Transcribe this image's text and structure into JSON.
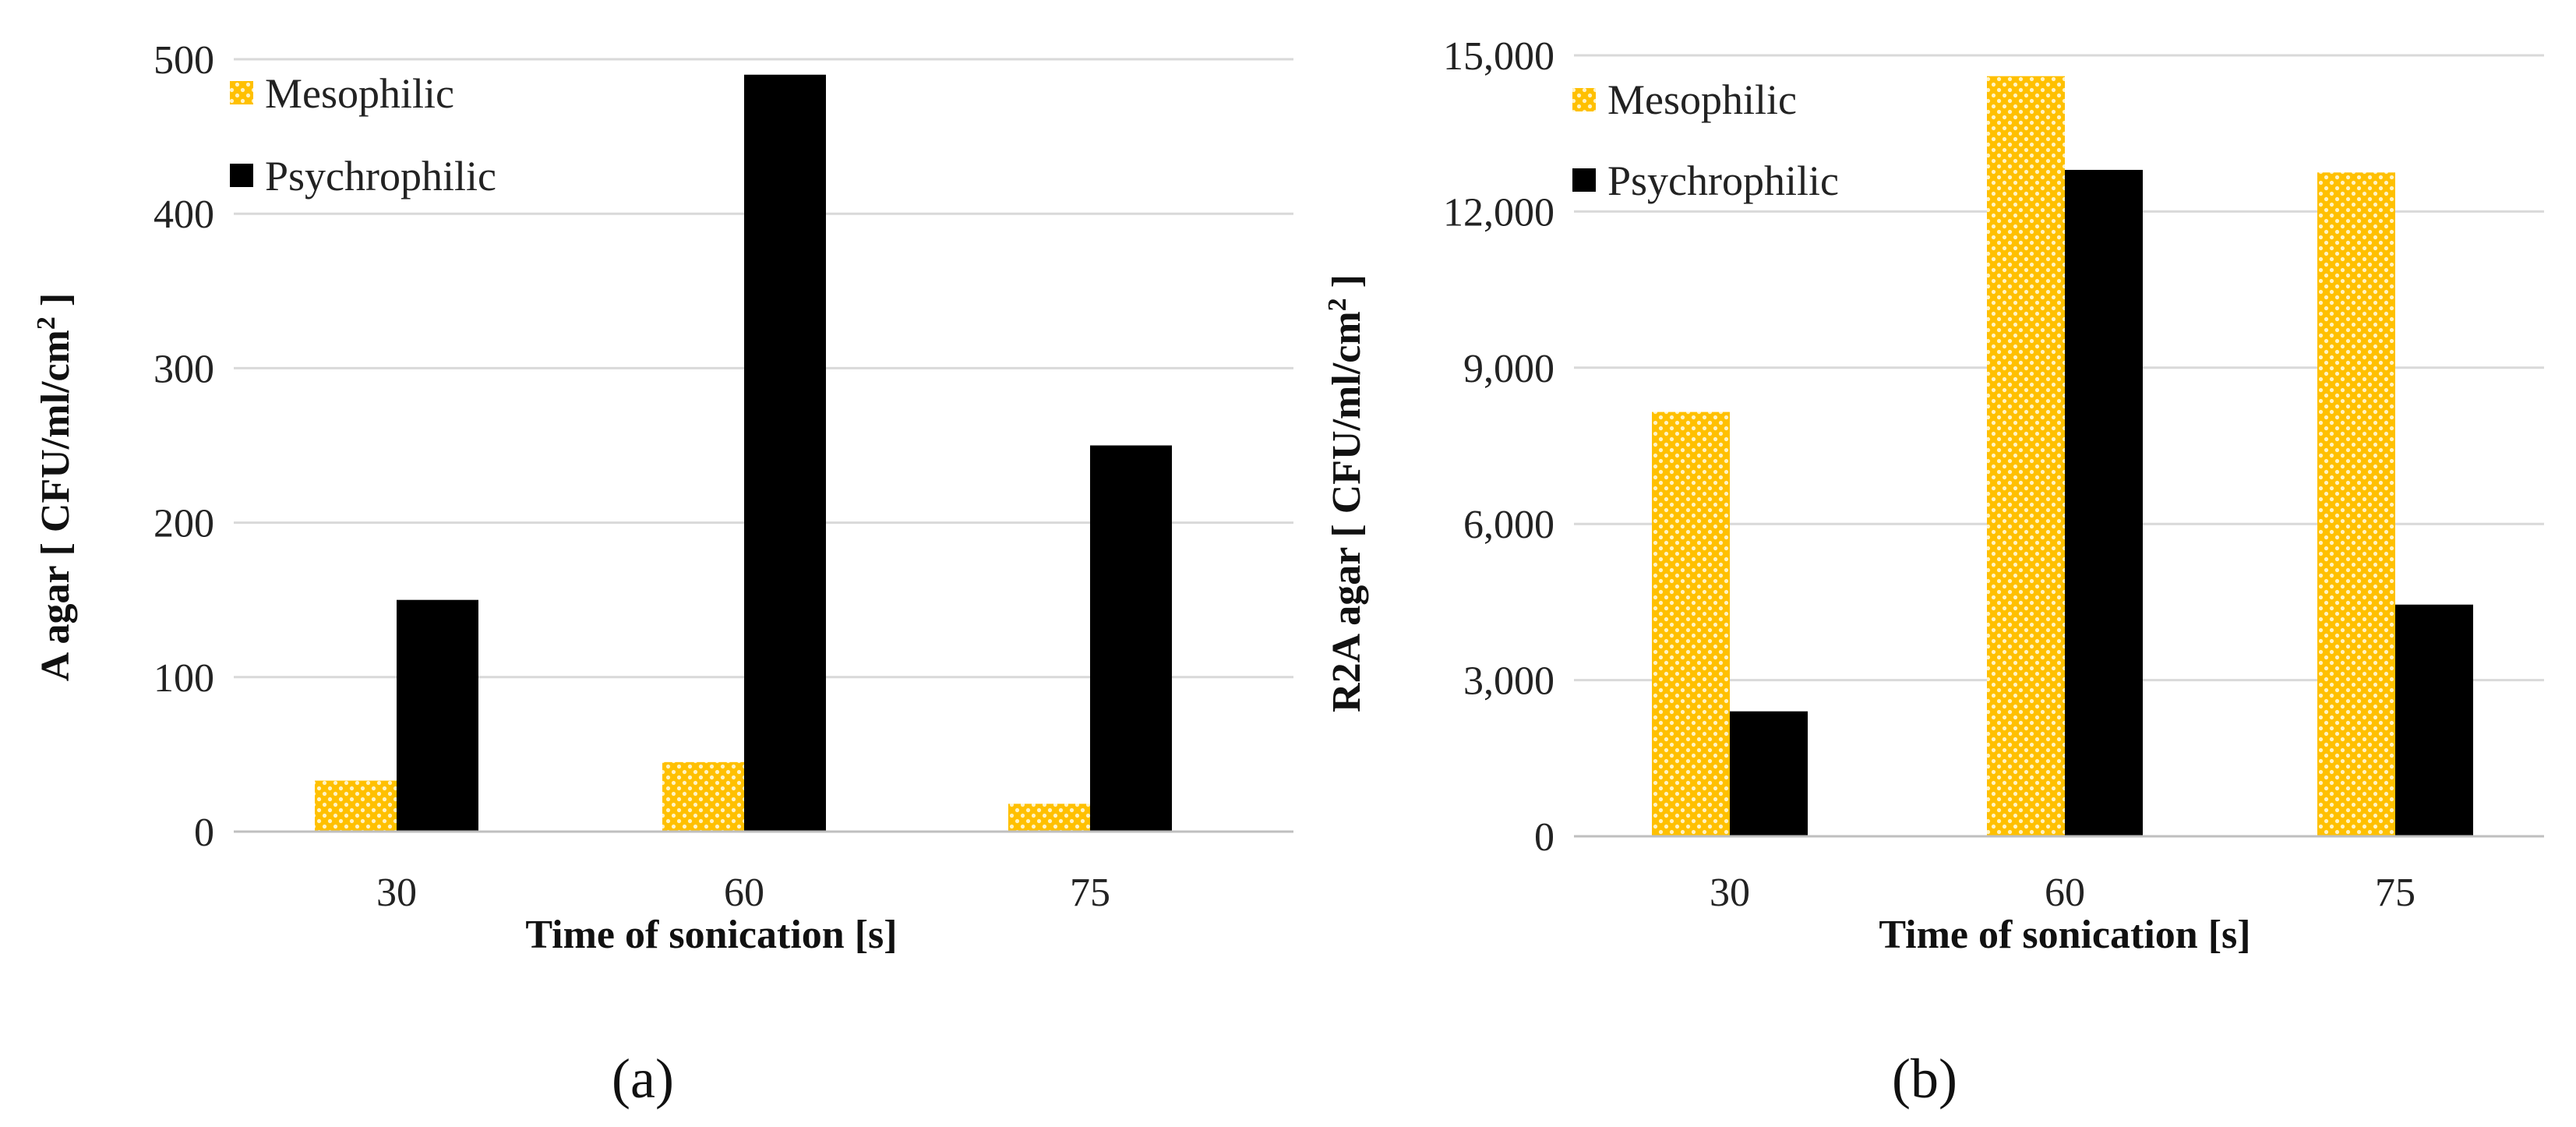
{
  "colors": {
    "mesophilic": "#ffc000",
    "mesophilic_dots": "#fff3c4",
    "psychrophilic": "#000000",
    "grid": "#d9d9d9"
  },
  "chart_data": [
    {
      "type": "bar",
      "panel_label": "(a)",
      "categories": [
        "30",
        "60",
        "75"
      ],
      "series": [
        {
          "name": "Mesophilic",
          "values": [
            33,
            45,
            18
          ]
        },
        {
          "name": "Psychrophilic",
          "values": [
            150,
            490,
            250
          ]
        }
      ],
      "xlabel": "Time of sonication [s]",
      "ylabel": "A agar [ CFU/ml/cm",
      "ylabel_sup": "2",
      "ylabel_end": " ]",
      "ylim": [
        0,
        500
      ],
      "yticks": [
        0,
        100,
        200,
        300,
        400,
        500
      ],
      "ytick_labels": [
        "0",
        "100",
        "200",
        "300",
        "400",
        "500"
      ],
      "legend_position": "top-left",
      "grid": true
    },
    {
      "type": "bar",
      "panel_label": "(b)",
      "categories": [
        "30",
        "60",
        "75"
      ],
      "series": [
        {
          "name": "Mesophilic",
          "values": [
            8150,
            14600,
            12750
          ]
        },
        {
          "name": "Psychrophilic",
          "values": [
            2400,
            12800,
            4450
          ]
        }
      ],
      "xlabel": "Time of sonication [s]",
      "ylabel": "R2A agar [ CFU/ml/cm",
      "ylabel_sup": "2",
      "ylabel_end": " ]",
      "ylim": [
        0,
        15000
      ],
      "yticks": [
        0,
        3000,
        6000,
        9000,
        12000,
        15000
      ],
      "ytick_labels": [
        "0",
        "3,000",
        "6,000",
        "9,000",
        "12,000",
        "15,000"
      ],
      "legend_position": "top-left",
      "grid": true
    }
  ]
}
